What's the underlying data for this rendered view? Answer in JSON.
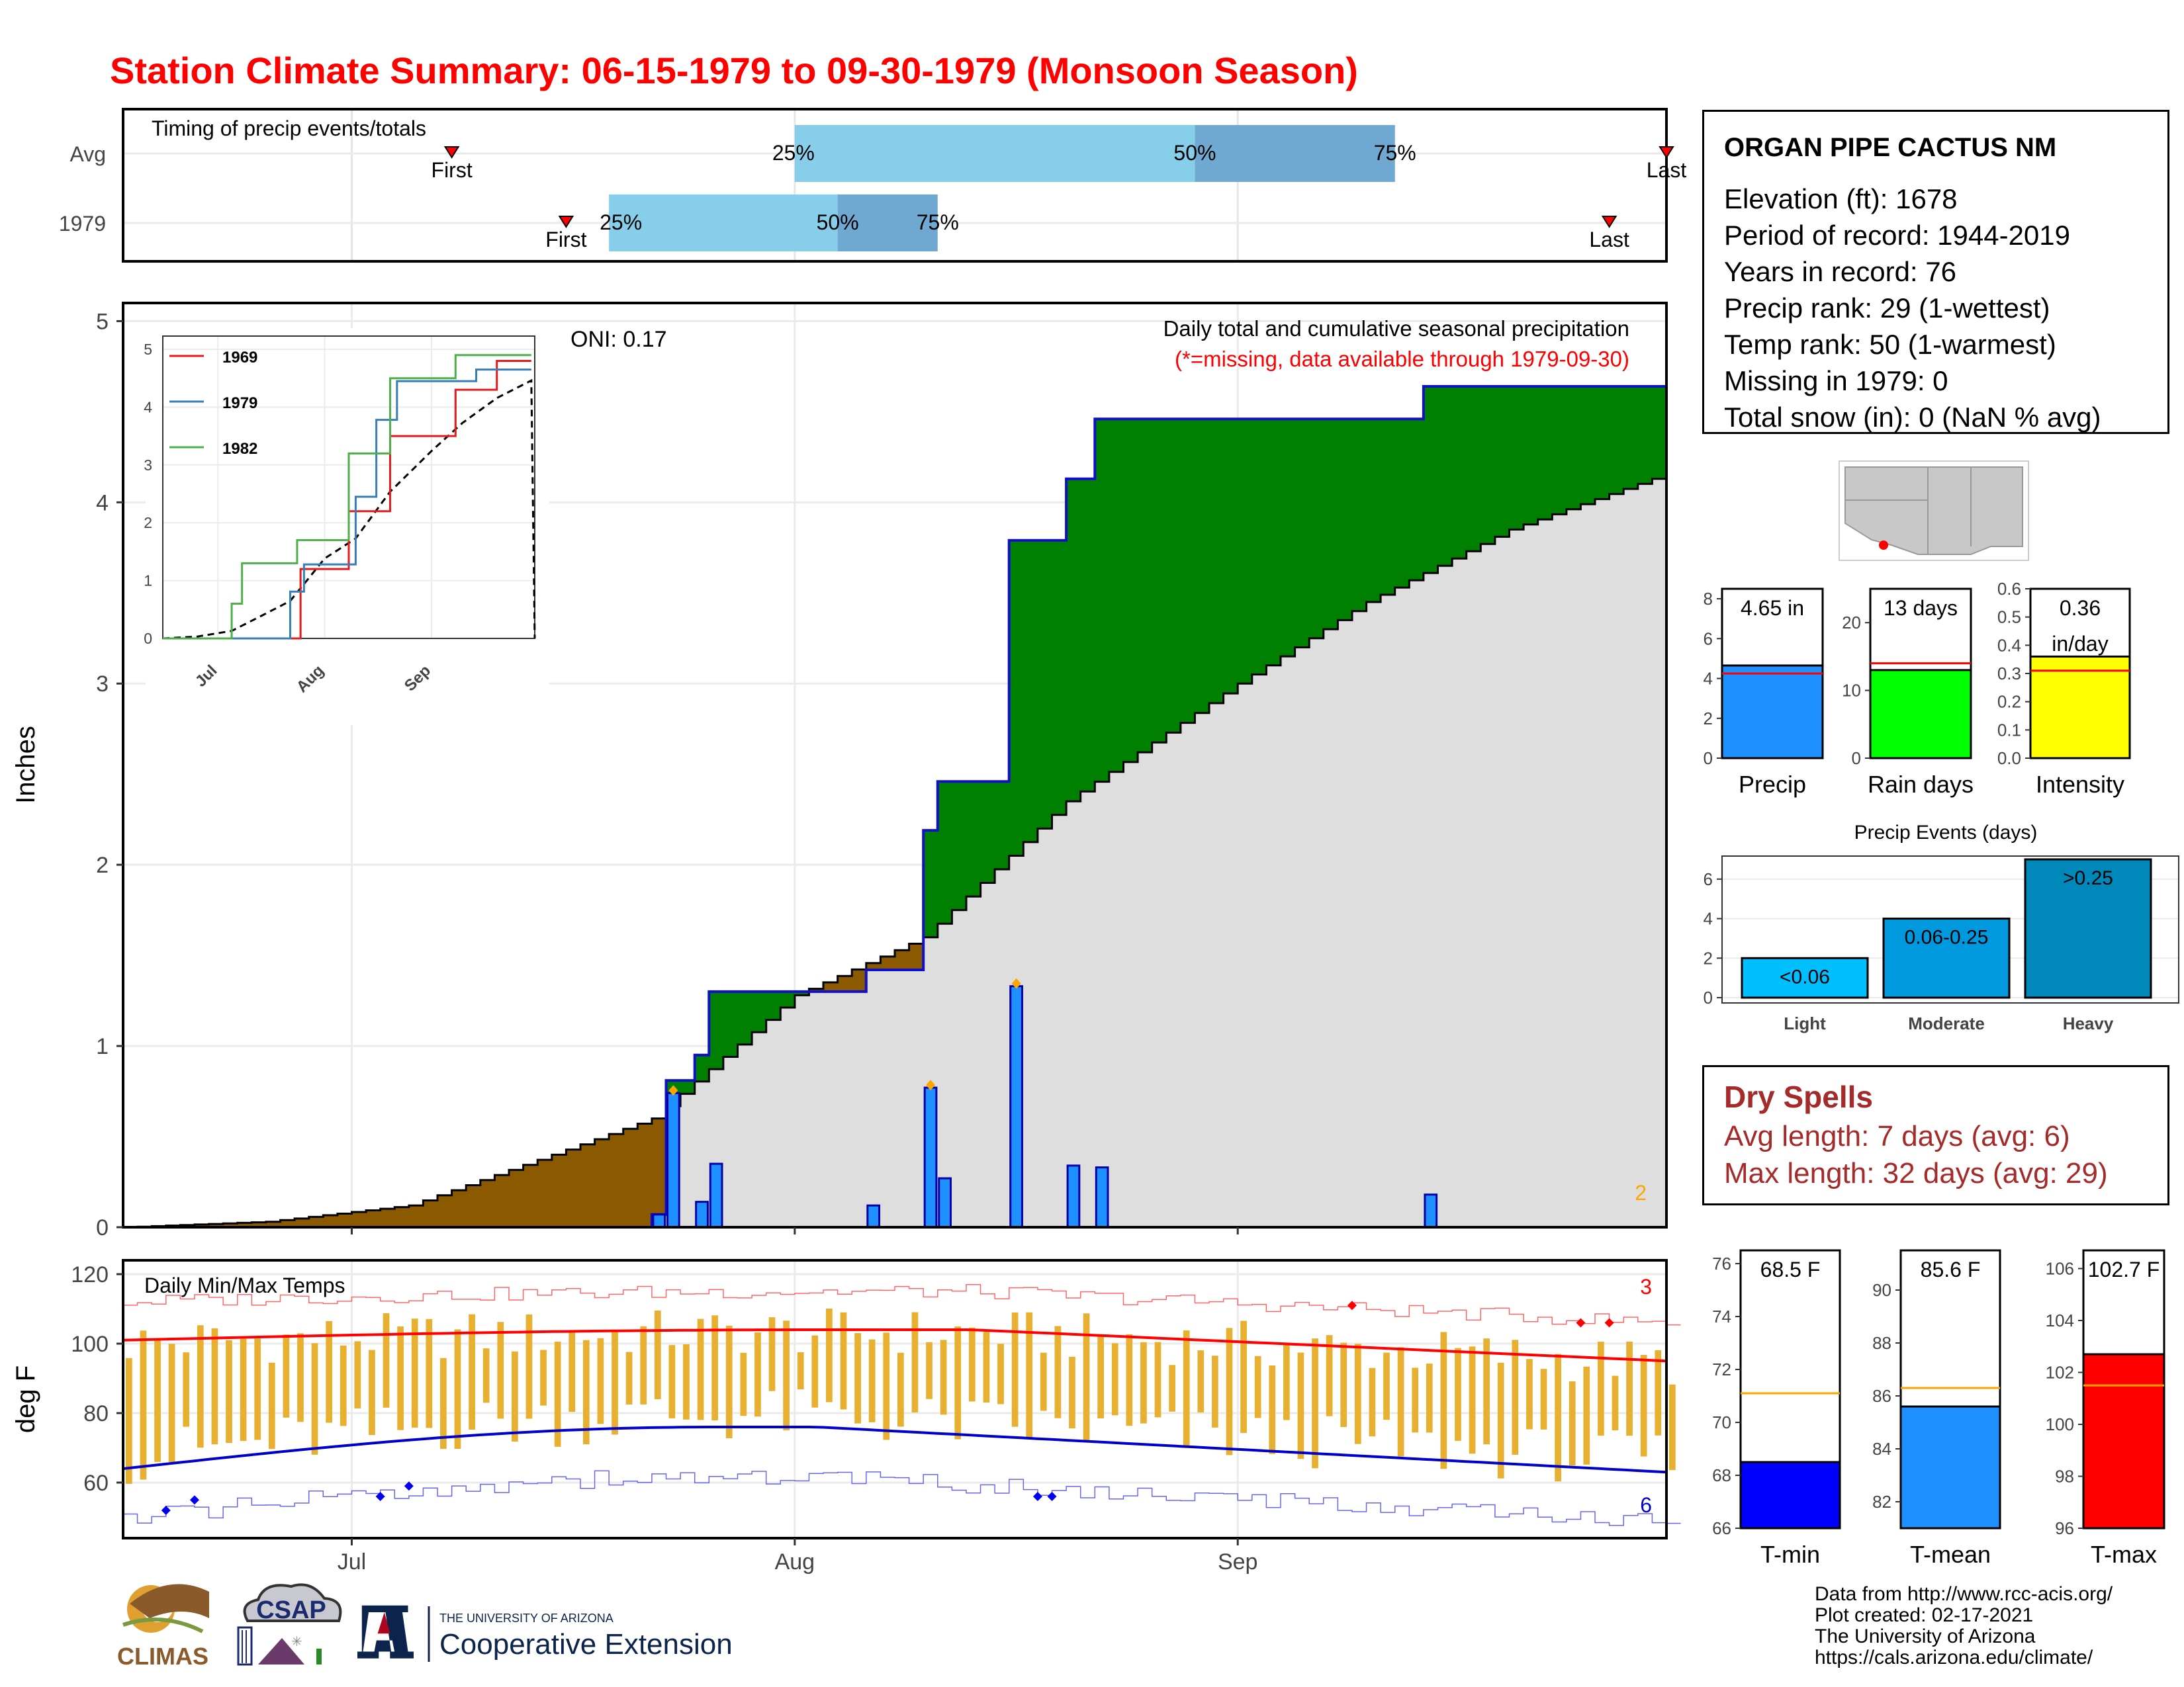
{
  "title": "Station Climate Summary: 06-15-1979 to 09-30-1979 (Monsoon Season)",
  "colors": {
    "title": "#ff0000",
    "precip_cum_green": "#008000",
    "precip_deficit_brown": "#8b5a00",
    "avg_gray": "#dedede",
    "daily_bar": "#1e90ff",
    "temp_bar": "#e8b030",
    "tmax_avg": "#ff0000",
    "tmin_avg": "#0000cc",
    "quartile_light": "#87ceeb",
    "quartile_dark": "#6fa8d0"
  },
  "timing": {
    "label": "Timing of precip events/totals",
    "rows": [
      {
        "label": "Avg",
        "first": "First",
        "last": "Last",
        "p25": "25%",
        "p50": "50%",
        "p75": "75%",
        "first_doy": 23,
        "p25_doy": 47,
        "p50_doy": 75,
        "p75_doy": 89,
        "last_doy": 108
      },
      {
        "label": "1979",
        "first": "First",
        "last": "Last",
        "p25": "25%",
        "p50": "50%",
        "p75": "75%",
        "first_doy": 31,
        "p25_doy": 34,
        "p50_doy": 50,
        "p75_doy": 57,
        "last_doy": 104
      }
    ]
  },
  "station": {
    "name": "ORGAN PIPE CACTUS NM",
    "lines": [
      "Elevation (ft): 1678",
      "Period of record: 1944-2019",
      "Years in record: 76",
      "Precip rank: 29 (1-wettest)",
      "Temp rank: 50 (1-warmest)",
      "Missing in 1979: 0",
      "Total snow (in): 0 (NaN % avg)"
    ]
  },
  "precip_chart": {
    "ylabel": "Inches",
    "oni": "ONI: 0.17",
    "subtitle": "Daily total and cumulative seasonal precipitation",
    "missing_note": "(*=missing, data available through 1979-09-30)",
    "corner_count": "2",
    "yticks": [
      "0",
      "1",
      "2",
      "3",
      "4",
      "5"
    ],
    "xticks": [
      "Jul",
      "Aug",
      "Sep"
    ]
  },
  "inset": {
    "yticks": [
      "0",
      "1",
      "2",
      "3",
      "4",
      "5"
    ],
    "xticks": [
      "Jul",
      "Aug",
      "Sep"
    ],
    "legend": [
      {
        "name": "1969",
        "color": "#e41a1c"
      },
      {
        "name": "1979",
        "color": "#377eb8"
      },
      {
        "name": "1982",
        "color": "#4daf4a"
      }
    ]
  },
  "temp_chart": {
    "ylabel": "deg F",
    "label": "Daily Min/Max Temps",
    "count_high": "3",
    "count_low": "6",
    "yticks": [
      "60",
      "80",
      "100",
      "120"
    ],
    "xticks": [
      "Jul",
      "Aug",
      "Sep"
    ]
  },
  "summary_bars": {
    "precip": {
      "label": "Precip",
      "value_text": "4.65 in",
      "value": 4.65,
      "avg": 4.25,
      "max": 8.5,
      "yticks": [
        "0",
        "2",
        "4",
        "6",
        "8"
      ],
      "color": "#1e90ff"
    },
    "rain_days": {
      "label": "Rain days",
      "value_text": "13 days",
      "value": 13,
      "avg": 14,
      "max": 25,
      "yticks": [
        "0",
        "10",
        "20"
      ],
      "color": "#00ff00"
    },
    "intensity": {
      "label": "Intensity",
      "value_text": "0.36",
      "value_unit": "in/day",
      "value": 0.36,
      "avg": 0.31,
      "max": 0.6,
      "yticks": [
        "0.0",
        "0.1",
        "0.2",
        "0.3",
        "0.4",
        "0.5",
        "0.6"
      ],
      "color": "#ffff00"
    }
  },
  "precip_events": {
    "title": "Precip Events (days)",
    "yticks": [
      "0",
      "2",
      "4",
      "6"
    ],
    "categories": [
      "Light",
      "Moderate",
      "Heavy"
    ],
    "bar_labels": [
      "<0.06",
      "0.06-0.25",
      ">0.25"
    ],
    "values": [
      2,
      4,
      7
    ],
    "colors": [
      "#00bfff",
      "#0099dd",
      "#0088bb"
    ]
  },
  "dry_spells": {
    "title": "Dry Spells",
    "avg_line": "Avg length: 7 days (avg: 6)",
    "max_line": "Max length: 32 days (avg: 29)"
  },
  "temp_bars": {
    "tmin": {
      "label": "T-min",
      "value_text": "68.5 F",
      "value": 68.5,
      "avg": 71.1,
      "ymin": 66,
      "ymax": 76.5,
      "yticks": [
        "66",
        "68",
        "70",
        "72",
        "74",
        "76"
      ],
      "color": "#0000ff"
    },
    "tmean": {
      "label": "T-mean",
      "value_text": "85.6 F",
      "value": 85.6,
      "avg": 86.3,
      "ymin": 81,
      "ymax": 91.5,
      "yticks": [
        "82",
        "84",
        "86",
        "88",
        "90"
      ],
      "color": "#1e90ff"
    },
    "tmax": {
      "label": "T-max",
      "value_text": "102.7 F",
      "value": 102.7,
      "avg": 101.5,
      "ymin": 96,
      "ymax": 106.7,
      "yticks": [
        "96",
        "98",
        "100",
        "102",
        "104",
        "106"
      ],
      "color": "#ff0000"
    }
  },
  "credits": {
    "lines": [
      "Data from http://www.rcc-acis.org/",
      "Plot created: 02-17-2021",
      "The University of Arizona",
      "https://cals.arizona.edu/climate/"
    ],
    "logo_climas": "CLIMAS",
    "logo_csap": "CSAP",
    "logo_ua_top": "THE UNIVERSITY OF ARIZONA",
    "logo_ua_bottom": "Cooperative Extension"
  },
  "chart_data": [
    {
      "type": "area",
      "title": "Daily total and cumulative seasonal precipitation",
      "ylabel": "Inches",
      "ylim": [
        0,
        5.1
      ],
      "x_start": "1979-06-15",
      "x_end": "1979-09-30",
      "daily_precip_1979": [
        {
          "date": "1979-07-22",
          "value": 0.07
        },
        {
          "date": "1979-07-23",
          "value": 0.74
        },
        {
          "date": "1979-07-25",
          "value": 0.14
        },
        {
          "date": "1979-07-26",
          "value": 0.35
        },
        {
          "date": "1979-08-06",
          "value": 0.12
        },
        {
          "date": "1979-08-10",
          "value": 0.77
        },
        {
          "date": "1979-08-11",
          "value": 0.27
        },
        {
          "date": "1979-08-16",
          "value": 1.33
        },
        {
          "date": "1979-08-20",
          "value": 0.34
        },
        {
          "date": "1979-08-22",
          "value": 0.33
        },
        {
          "date": "1979-09-14",
          "value": 0.18
        }
      ],
      "cumulative_avg": [
        {
          "date": "1979-06-15",
          "value": 0.0
        },
        {
          "date": "1979-06-25",
          "value": 0.03
        },
        {
          "date": "1979-07-05",
          "value": 0.12
        },
        {
          "date": "1979-07-15",
          "value": 0.4
        },
        {
          "date": "1979-07-22",
          "value": 0.6
        },
        {
          "date": "1979-08-01",
          "value": 1.28
        },
        {
          "date": "1979-08-10",
          "value": 1.6
        },
        {
          "date": "1979-08-20",
          "value": 2.35
        },
        {
          "date": "1979-09-01",
          "value": 3.0
        },
        {
          "date": "1979-09-10",
          "value": 3.45
        },
        {
          "date": "1979-09-20",
          "value": 3.85
        },
        {
          "date": "1979-09-30",
          "value": 4.13
        }
      ]
    },
    {
      "type": "line",
      "title": "Inset cumulative precipitation",
      "series": [
        {
          "name": "1969",
          "x": [
            "1979-06-15",
            "1979-07-17",
            "1979-07-25",
            "1979-08-08",
            "1979-08-20",
            "1979-09-08",
            "1979-09-20",
            "1979-09-30"
          ],
          "values": [
            0,
            0,
            1.2,
            2.2,
            3.5,
            4.3,
            4.8,
            4.8
          ]
        },
        {
          "name": "1979",
          "x": [
            "1979-06-15",
            "1979-07-22",
            "1979-07-26",
            "1979-08-10",
            "1979-08-16",
            "1979-08-22",
            "1979-09-14",
            "1979-09-30"
          ],
          "values": [
            0,
            0.81,
            1.28,
            2.45,
            3.78,
            4.45,
            4.65,
            4.65
          ]
        },
        {
          "name": "1982",
          "x": [
            "1979-06-15",
            "1979-07-05",
            "1979-07-08",
            "1979-07-24",
            "1979-08-08",
            "1979-08-20",
            "1979-09-08",
            "1979-09-30"
          ],
          "values": [
            0,
            0.6,
            1.3,
            1.7,
            3.2,
            4.5,
            4.9,
            4.9
          ]
        }
      ],
      "yticks": [
        0,
        1,
        2,
        3,
        4,
        5
      ]
    },
    {
      "type": "bar",
      "title": "Daily Min/Max Temps",
      "ylabel": "deg F",
      "ylim": [
        44,
        124
      ],
      "x_start": "1979-06-15",
      "x_end": "1979-09-30",
      "tmax_avg_start": 101,
      "tmax_avg_peak": 104,
      "tmax_avg_end": 95,
      "tmin_avg_start": 64,
      "tmin_avg_peak": 76,
      "tmin_avg_end": 63
    }
  ]
}
